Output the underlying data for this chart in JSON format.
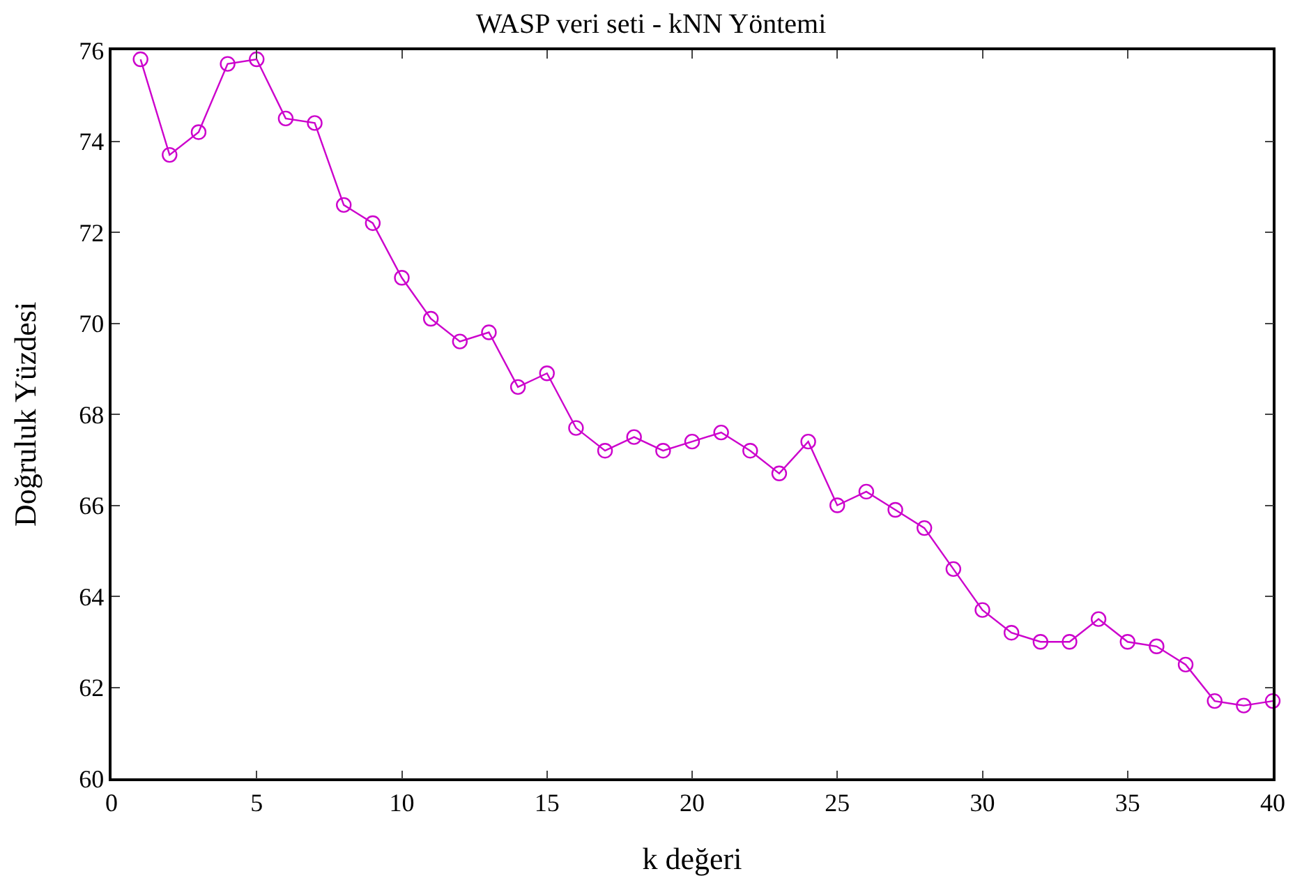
{
  "chart_data": {
    "type": "line",
    "title": "WASP veri seti - kNN Yöntemi",
    "xlabel": "k değeri",
    "ylabel": "Doğruluk Yüzdesi",
    "x": [
      1,
      2,
      3,
      4,
      5,
      6,
      7,
      8,
      9,
      10,
      11,
      12,
      13,
      14,
      15,
      16,
      17,
      18,
      19,
      20,
      21,
      22,
      23,
      24,
      25,
      26,
      27,
      28,
      29,
      30,
      31,
      32,
      33,
      34,
      35,
      36,
      37,
      38,
      39,
      40
    ],
    "series": [
      {
        "color": "#cc00cc",
        "values": [
          75.8,
          73.7,
          74.2,
          75.7,
          75.8,
          74.5,
          74.4,
          72.6,
          72.2,
          71.0,
          70.1,
          69.6,
          69.8,
          68.6,
          68.9,
          67.7,
          67.2,
          67.5,
          67.2,
          67.4,
          67.6,
          67.2,
          66.7,
          67.4,
          66.0,
          66.3,
          65.9,
          65.5,
          64.6,
          63.7,
          63.2,
          63.0,
          63.0,
          63.5,
          63.0,
          62.9,
          62.5,
          61.7,
          61.6,
          61.7
        ]
      }
    ],
    "xlim": [
      0,
      40
    ],
    "xticks": [
      0,
      5,
      10,
      15,
      20,
      25,
      30,
      35,
      40
    ],
    "ylim": [
      60,
      76
    ],
    "yticks": [
      60,
      62,
      64,
      66,
      68,
      70,
      72,
      74,
      76
    ],
    "grid": false,
    "marker": "circle",
    "line_style": "solid"
  }
}
